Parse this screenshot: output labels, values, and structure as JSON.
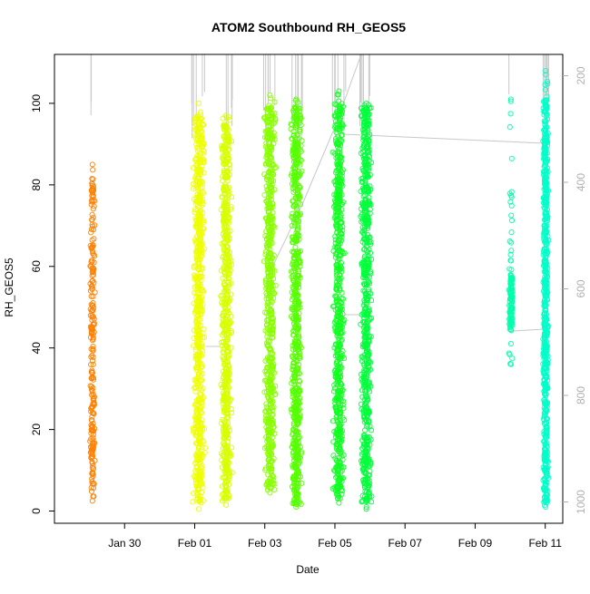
{
  "chart_data": {
    "type": "scatter",
    "title": "ATOM2 Southbound RH_GEOS5",
    "xlabel": "Date",
    "ylabel": "RH_GEOS5",
    "x_ticks": [
      "Jan 30",
      "Feb 01",
      "Feb 03",
      "Feb 05",
      "Feb 07",
      "Feb 09",
      "Feb 11"
    ],
    "xlim": [
      "2017-01-28T00:00",
      "2017-02-11T12:00"
    ],
    "ylim": [
      -3,
      112
    ],
    "y_ticks": [
      0,
      20,
      40,
      60,
      80,
      100
    ],
    "y2_ticks": [
      200,
      400,
      600,
      800,
      1000
    ],
    "y2_range": [
      1040,
      160
    ],
    "y2_note": "secondary axis, pressure (hPa), inverted",
    "marker": "open circle",
    "grid": false,
    "legend": "none",
    "flights": [
      {
        "x_start": "2017-01-29T00:00",
        "x_end": "2017-01-29T04:00",
        "y_min": 2.5,
        "y_max": 85,
        "dense_min": 3,
        "dense_max": 80,
        "color": "#FF8000"
      },
      {
        "x_start": "2017-01-31T22:00",
        "x_end": "2017-02-01T07:30",
        "y_min": 0.5,
        "y_max": 100,
        "dense_min": 2,
        "dense_max": 97,
        "color": "#EEFF00"
      },
      {
        "x_start": "2017-02-01T17:00",
        "x_end": "2017-02-02T02:00",
        "y_min": 1.5,
        "y_max": 97,
        "dense_min": 3,
        "dense_max": 95,
        "color": "#D8FF00"
      },
      {
        "x_start": "2017-02-02T23:00",
        "x_end": "2017-02-03T08:00",
        "y_min": 4.5,
        "y_max": 102,
        "dense_min": 5,
        "dense_max": 99,
        "color": "#88FF00"
      },
      {
        "x_start": "2017-02-03T17:00",
        "x_end": "2017-02-04T02:00",
        "y_min": 1,
        "y_max": 101,
        "dense_min": 1.5,
        "dense_max": 99,
        "color": "#55FF00"
      },
      {
        "x_start": "2017-02-04T22:00",
        "x_end": "2017-02-05T07:30",
        "y_min": 2,
        "y_max": 103,
        "dense_min": 3,
        "dense_max": 100,
        "color": "#11FF22"
      },
      {
        "x_start": "2017-02-05T17:00",
        "x_end": "2017-02-06T02:00",
        "y_min": 0.5,
        "y_max": 100,
        "dense_min": 2,
        "dense_max": 99,
        "color": "#00FF3A"
      },
      {
        "x_start": "2017-02-09T23:00",
        "x_end": "2017-02-10T02:00",
        "y_min": 36,
        "y_max": 101,
        "dense_min": 44,
        "dense_max": 58,
        "color": "#00FFAA"
      },
      {
        "x_start": "2017-02-10T22:00",
        "x_end": "2017-02-11T02:30",
        "y_min": 1,
        "y_max": 108,
        "dense_min": 2,
        "dense_max": 101,
        "color": "#00FFC8"
      }
    ]
  }
}
